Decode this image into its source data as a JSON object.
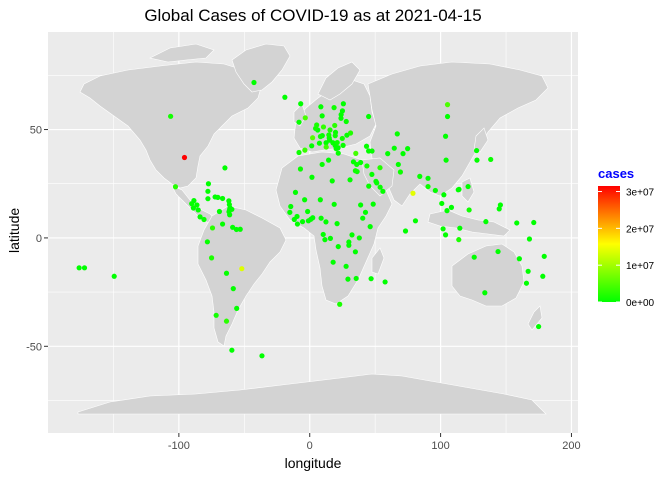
{
  "title": "Global Cases of COVID-19 as at 2021-04-15",
  "colors": {
    "panel": "#EBEBEB",
    "grid": "#FFFFFF",
    "land": "#D3D3D3",
    "legend_title": "#0000FF",
    "low": "#00FF00",
    "mid": "#FFFF00",
    "high": "#FF0000"
  },
  "chart_data": {
    "type": "scatter",
    "title": "Global Cases of COVID-19 as at 2021-04-15",
    "xlabel": "longitude",
    "ylabel": "latitude",
    "xlim": [
      -200,
      205
    ],
    "ylim": [
      -90,
      95
    ],
    "x_ticks": [
      -100,
      0,
      100,
      200
    ],
    "x_tick_labels": [
      "-100",
      "0",
      "100",
      "200"
    ],
    "y_ticks": [
      -50,
      0,
      50
    ],
    "y_tick_labels": [
      "-50",
      "0",
      "50"
    ],
    "grid": true,
    "legend": {
      "title": "cases",
      "position": "right",
      "breaks": [
        0,
        10000000,
        20000000,
        30000000
      ],
      "labels": [
        "0e+00",
        "1e+07",
        "2e+07",
        "3e+07"
      ],
      "max": 31500000
    },
    "points": [
      {
        "x": -95.7,
        "y": 37.1,
        "cases": 31500000
      },
      {
        "x": 78.9,
        "y": 20.6,
        "cases": 14000000
      },
      {
        "x": -51.9,
        "y": -14.2,
        "cases": 13700000
      },
      {
        "x": 105.3,
        "y": 61.5,
        "cases": 4650000
      },
      {
        "x": 2.2,
        "y": 46.2,
        "cases": 5100000
      },
      {
        "x": -3.4,
        "y": 55.4,
        "cases": 4380000
      },
      {
        "x": 35.2,
        "y": 39.0,
        "cases": 4200000
      },
      {
        "x": 12.6,
        "y": 41.9,
        "cases": 3800000
      },
      {
        "x": -3.7,
        "y": 40.5,
        "cases": 3400000
      },
      {
        "x": 10.5,
        "y": 51.2,
        "cases": 3100000
      },
      {
        "x": -74.3,
        "y": 4.6,
        "cases": 2600000
      },
      {
        "x": -63.6,
        "y": -38.4,
        "cases": 2600000
      },
      {
        "x": 19.1,
        "y": 51.9,
        "cases": 2600000
      },
      {
        "x": -102.6,
        "y": 23.6,
        "cases": 2300000
      },
      {
        "x": 53.7,
        "y": 32.4,
        "cases": 2200000
      },
      {
        "x": 31.2,
        "y": 48.4,
        "cases": 2000000
      },
      {
        "x": 22.9,
        "y": -30.6,
        "cases": 1560000
      },
      {
        "x": 5.3,
        "y": 52.1,
        "cases": 1400000
      },
      {
        "x": 15.5,
        "y": 49.8,
        "cases": 1560000
      },
      {
        "x": -75.0,
        "y": -9.2,
        "cases": 1690000
      },
      {
        "x": -71.5,
        "y": -35.7,
        "cases": 1100000
      },
      {
        "x": 24.9,
        "y": 45.9,
        "cases": 1000000
      },
      {
        "x": 4.5,
        "y": 50.5,
        "cases": 930000
      },
      {
        "x": 113.9,
        "y": -0.8,
        "cases": 1590000
      },
      {
        "x": 43.7,
        "y": 33.2,
        "cases": 950000
      },
      {
        "x": 18.6,
        "y": 60.1,
        "cases": 850000
      },
      {
        "x": 34.9,
        "y": 31.0,
        "cases": 836000
      },
      {
        "x": 121.8,
        "y": 12.9,
        "cases": 920000
      },
      {
        "x": 69.3,
        "y": 30.4,
        "cases": 740000
      },
      {
        "x": 19.5,
        "y": 47.2,
        "cases": 730000
      },
      {
        "x": 45.1,
        "y": 23.9,
        "cases": 400000
      },
      {
        "x": 66.9,
        "y": 48.0,
        "cases": 320000
      },
      {
        "x": 8.2,
        "y": 46.8,
        "cases": 640000
      },
      {
        "x": -55.8,
        "y": -32.5,
        "cases": 150000
      },
      {
        "x": -78.2,
        "y": -1.8,
        "cases": 350000
      },
      {
        "x": -66.6,
        "y": 6.4,
        "cases": 175000
      },
      {
        "x": 101.9,
        "y": 4.2,
        "cases": 360000
      },
      {
        "x": 100.9,
        "y": 15.9,
        "cases": 45000
      },
      {
        "x": 104.2,
        "y": 35.9,
        "cases": 90000
      },
      {
        "x": 138.3,
        "y": 36.2,
        "cases": 520000
      },
      {
        "x": 127.8,
        "y": 35.9,
        "cases": 110000
      },
      {
        "x": 133.8,
        "y": -25.3,
        "cases": 29000
      },
      {
        "x": 174.9,
        "y": -40.9,
        "cases": 2600
      },
      {
        "x": 30.8,
        "y": 26.8,
        "cases": 215000
      },
      {
        "x": 8.7,
        "y": 9.1,
        "cases": 164000
      },
      {
        "x": 40.5,
        "y": 9.1,
        "cases": 230000
      },
      {
        "x": 37.9,
        "y": -0.0,
        "cases": 150000
      },
      {
        "x": 1.7,
        "y": 28.0,
        "cases": 118000
      },
      {
        "x": -7.1,
        "y": 31.8,
        "cases": 500000
      },
      {
        "x": 9.5,
        "y": 33.9,
        "cases": 280000
      },
      {
        "x": 17.2,
        "y": 26.3,
        "cases": 170000
      },
      {
        "x": -1.0,
        "y": 7.9,
        "cases": 91000
      },
      {
        "x": -5.5,
        "y": 7.5,
        "cases": 45000
      },
      {
        "x": -14.5,
        "y": 14.5,
        "cases": 39000
      },
      {
        "x": 12.4,
        "y": 7.4,
        "cases": 60000
      },
      {
        "x": 17.9,
        "y": -11.2,
        "cases": 24000
      },
      {
        "x": 27.8,
        "y": -13.1,
        "cases": 90000
      },
      {
        "x": 29.2,
        "y": -19.0,
        "cases": 37000
      },
      {
        "x": 35.5,
        "y": -18.7,
        "cases": 68000
      },
      {
        "x": 46.9,
        "y": -18.8,
        "cases": 32000
      },
      {
        "x": 57.6,
        "y": -20.3,
        "cases": 1100
      },
      {
        "x": 34.9,
        "y": -6.4,
        "cases": 500
      },
      {
        "x": 32.3,
        "y": 1.4,
        "cases": 41000
      },
      {
        "x": 29.9,
        "y": -1.9,
        "cases": 23000
      },
      {
        "x": 29.9,
        "y": -3.4,
        "cases": 3000
      },
      {
        "x": 21.8,
        "y": -4.0,
        "cases": 28000
      },
      {
        "x": 15.8,
        "y": -0.2,
        "cases": 10000
      },
      {
        "x": 11.6,
        "y": -0.8,
        "cases": 22000
      },
      {
        "x": 10.3,
        "y": 1.6,
        "cases": 7000
      },
      {
        "x": 20.9,
        "y": 6.6,
        "cases": 5500
      },
      {
        "x": 18.7,
        "y": 15.5,
        "cases": 4600
      },
      {
        "x": 8.1,
        "y": 17.6,
        "cases": 5000
      },
      {
        "x": -1.6,
        "y": 12.2,
        "cases": 12900
      },
      {
        "x": -3.9,
        "y": 17.6,
        "cases": 10000
      },
      {
        "x": -10.9,
        "y": 21.0,
        "cases": 18000
      },
      {
        "x": -9.7,
        "y": 9.9,
        "cases": 22000
      },
      {
        "x": -11.8,
        "y": 8.5,
        "cases": 4000
      },
      {
        "x": -9.4,
        "y": 6.4,
        "cases": 2000
      },
      {
        "x": -15.2,
        "y": 11.8,
        "cases": 3700
      },
      {
        "x": 2.3,
        "y": 9.3,
        "cases": 7600
      },
      {
        "x": 0.8,
        "y": 8.6,
        "cases": 11000
      },
      {
        "x": 38.9,
        "y": 15.2,
        "cases": 3800
      },
      {
        "x": 42.6,
        "y": 11.8,
        "cases": 10000
      },
      {
        "x": 46.2,
        "y": 5.2,
        "cases": 12000
      },
      {
        "x": 48.5,
        "y": 15.6,
        "cases": 5500
      },
      {
        "x": 55.9,
        "y": 21.5,
        "cases": 180000
      },
      {
        "x": 53.8,
        "y": 23.4,
        "cases": 490000
      },
      {
        "x": 51.2,
        "y": 25.4,
        "cases": 195000
      },
      {
        "x": 50.6,
        "y": 26.1,
        "cases": 165000
      },
      {
        "x": 47.5,
        "y": 29.3,
        "cases": 250000
      },
      {
        "x": 36.2,
        "y": 30.6,
        "cases": 690000
      },
      {
        "x": 35.9,
        "y": 33.9,
        "cases": 500000
      },
      {
        "x": 38.9,
        "y": 34.8,
        "cases": 21000
      },
      {
        "x": 33.4,
        "y": 35.1,
        "cases": 55000
      },
      {
        "x": 43.4,
        "y": 42.3,
        "cases": 300000
      },
      {
        "x": 45.0,
        "y": 40.1,
        "cases": 205000
      },
      {
        "x": 47.6,
        "y": 40.1,
        "cases": 300000
      },
      {
        "x": 59.6,
        "y": 38.9,
        "cases": 100
      },
      {
        "x": 64.6,
        "y": 41.4,
        "cases": 85000
      },
      {
        "x": 71.3,
        "y": 38.9,
        "cases": 13300
      },
      {
        "x": 74.8,
        "y": 41.2,
        "cases": 90000
      },
      {
        "x": 67.7,
        "y": 33.9,
        "cases": 57000
      },
      {
        "x": 84.1,
        "y": 28.4,
        "cases": 280000
      },
      {
        "x": 90.4,
        "y": 27.5,
        "cases": 950
      },
      {
        "x": 90.4,
        "y": 23.7,
        "cases": 700000
      },
      {
        "x": 80.8,
        "y": 7.9,
        "cases": 95000
      },
      {
        "x": 73.2,
        "y": 3.2,
        "cases": 26000
      },
      {
        "x": 96.0,
        "y": 21.9,
        "cases": 142000
      },
      {
        "x": 102.5,
        "y": 19.9,
        "cases": 60
      },
      {
        "x": 104.9,
        "y": 12.6,
        "cases": 4500
      },
      {
        "x": 108.3,
        "y": 14.1,
        "cases": 2700
      },
      {
        "x": 103.8,
        "y": 1.4,
        "cases": 60000
      },
      {
        "x": 114.7,
        "y": 4.5,
        "cases": 220
      },
      {
        "x": 125.7,
        "y": -8.9,
        "cases": 1400
      },
      {
        "x": 143.9,
        "y": -6.3,
        "cases": 9700
      },
      {
        "x": 160.2,
        "y": -9.6,
        "cases": 20
      },
      {
        "x": 166.9,
        "y": -15.4,
        "cases": 4
      },
      {
        "x": 165.6,
        "y": -20.9,
        "cases": 100
      },
      {
        "x": 178.1,
        "y": -17.7,
        "cases": 70
      },
      {
        "x": 171.2,
        "y": 7.1,
        "cases": 4
      },
      {
        "x": 158.2,
        "y": 6.9,
        "cases": 1
      },
      {
        "x": 134.6,
        "y": 7.5,
        "cases": 0
      },
      {
        "x": 144.8,
        "y": 13.4,
        "cases": 0
      },
      {
        "x": 145.7,
        "y": 15.2,
        "cases": 0
      },
      {
        "x": 113.5,
        "y": 22.2,
        "cases": 50
      },
      {
        "x": 114.1,
        "y": 22.4,
        "cases": 11600
      },
      {
        "x": 121.0,
        "y": 23.7,
        "cases": 1070
      },
      {
        "x": 127.5,
        "y": 40.3,
        "cases": 0
      },
      {
        "x": 103.8,
        "y": 46.9,
        "cases": 17000
      },
      {
        "x": 105.3,
        "y": 56.0,
        "cases": 0
      },
      {
        "x": 45.0,
        "y": 56.0,
        "cases": 0
      },
      {
        "x": 24.0,
        "y": 56.9,
        "cases": 210000
      },
      {
        "x": 23.9,
        "y": 55.2,
        "cases": 240000
      },
      {
        "x": 25.0,
        "y": 58.6,
        "cases": 110000
      },
      {
        "x": 27.9,
        "y": 53.7,
        "cases": 330000
      },
      {
        "x": 28.4,
        "y": 47.4,
        "cases": 230000
      },
      {
        "x": 25.5,
        "y": 42.7,
        "cases": 370000
      },
      {
        "x": 21.8,
        "y": 39.1,
        "cases": 300000
      },
      {
        "x": 20.2,
        "y": 41.2,
        "cases": 128000
      },
      {
        "x": 21.7,
        "y": 41.6,
        "cases": 145000
      },
      {
        "x": 21.0,
        "y": 44.0,
        "cases": 660000
      },
      {
        "x": 19.4,
        "y": 42.7,
        "cases": 94000
      },
      {
        "x": 17.7,
        "y": 43.9,
        "cases": 185000
      },
      {
        "x": 15.2,
        "y": 45.1,
        "cases": 320000
      },
      {
        "x": 14.9,
        "y": 46.1,
        "cases": 225000
      },
      {
        "x": 14.6,
        "y": 47.5,
        "cases": 580000
      },
      {
        "x": 19.7,
        "y": 48.7,
        "cases": 370000
      },
      {
        "x": 9.5,
        "y": 56.3,
        "cases": 240000
      },
      {
        "x": 8.5,
        "y": 60.5,
        "cases": 104000
      },
      {
        "x": 25.7,
        "y": 61.9,
        "cases": 83000
      },
      {
        "x": -19.0,
        "y": 64.9,
        "cases": 6300
      },
      {
        "x": -8.2,
        "y": 53.4,
        "cases": 245000
      },
      {
        "x": -8.2,
        "y": 39.4,
        "cases": 830000
      },
      {
        "x": 6.1,
        "y": 49.8,
        "cases": 64000
      },
      {
        "x": 14.4,
        "y": 35.9,
        "cases": 29000
      },
      {
        "x": 1.5,
        "y": 42.5,
        "cases": 12000
      },
      {
        "x": 9.6,
        "y": 47.2,
        "cases": 2800
      },
      {
        "x": 12.5,
        "y": 43.9,
        "cases": 4800
      },
      {
        "x": 7.4,
        "y": 43.7,
        "cases": 2400
      },
      {
        "x": -42.6,
        "y": 71.7,
        "cases": 31
      },
      {
        "x": -6.9,
        "y": 61.9,
        "cases": 660
      },
      {
        "x": -77.8,
        "y": 18.1,
        "cases": 45000
      },
      {
        "x": -77.4,
        "y": 25.0,
        "cases": 9600
      },
      {
        "x": -77.8,
        "y": 21.5,
        "cases": 88000
      },
      {
        "x": -72.3,
        "y": 18.9,
        "cases": 13000
      },
      {
        "x": -70.2,
        "y": 18.7,
        "cases": 260000
      },
      {
        "x": -66.6,
        "y": 18.2,
        "cases": 160000
      },
      {
        "x": -61.8,
        "y": 17.1,
        "cases": 1200
      },
      {
        "x": -61.4,
        "y": 15.4,
        "cases": 160
      },
      {
        "x": -60.9,
        "y": 13.9,
        "cases": 4200
      },
      {
        "x": -59.5,
        "y": 13.2,
        "cases": 3600
      },
      {
        "x": -61.2,
        "y": 13.2,
        "cases": 1700
      },
      {
        "x": -61.7,
        "y": 12.1,
        "cases": 160
      },
      {
        "x": -61.2,
        "y": 10.7,
        "cases": 9000
      },
      {
        "x": -69.0,
        "y": 12.2,
        "cases": 12000
      },
      {
        "x": -88.9,
        "y": 13.8,
        "cases": 67000
      },
      {
        "x": -90.2,
        "y": 15.8,
        "cases": 205000
      },
      {
        "x": -86.2,
        "y": 15.2,
        "cases": 190000
      },
      {
        "x": -85.2,
        "y": 12.9,
        "cases": 7000
      },
      {
        "x": -83.8,
        "y": 9.7,
        "cases": 220000
      },
      {
        "x": -80.8,
        "y": 8.5,
        "cases": 360000
      },
      {
        "x": -88.5,
        "y": 17.2,
        "cases": 12500
      },
      {
        "x": -58.9,
        "y": 4.9,
        "cases": 11500
      },
      {
        "x": -56.0,
        "y": 3.9,
        "cases": 9600
      },
      {
        "x": -53.1,
        "y": 4.0,
        "cases": 19000
      },
      {
        "x": -63.6,
        "y": -16.3,
        "cases": 290000
      },
      {
        "x": -58.4,
        "y": -23.4,
        "cases": 240000
      },
      {
        "x": -59.5,
        "y": -51.8,
        "cases": 60
      },
      {
        "x": -36.5,
        "y": -54.4,
        "cases": 0
      },
      {
        "x": -64.8,
        "y": 32.3,
        "cases": 790
      },
      {
        "x": -106.3,
        "y": 56.1,
        "cases": 1090000
      },
      {
        "x": -172.1,
        "y": -13.8,
        "cases": 4
      },
      {
        "x": -176.2,
        "y": -13.8,
        "cases": 1
      },
      {
        "x": -149.4,
        "y": -17.7,
        "cases": 18600
      },
      {
        "x": 179.2,
        "y": -8.5,
        "cases": 0
      },
      {
        "x": 167.9,
        "y": -0.5,
        "cases": 0
      }
    ]
  }
}
